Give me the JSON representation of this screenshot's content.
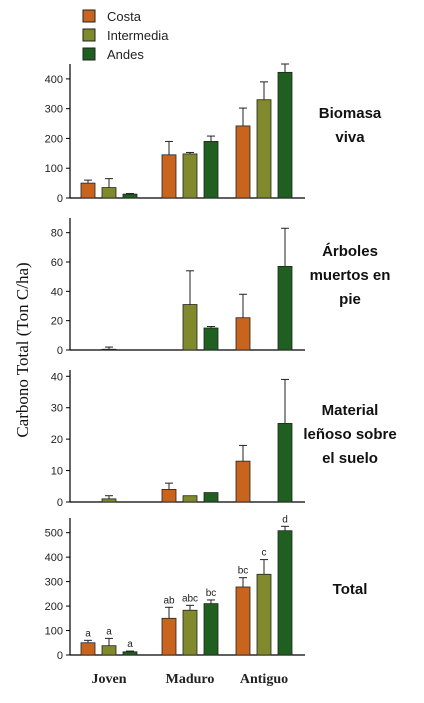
{
  "chart_data": {
    "type": "bar",
    "ylabel": "Carbono Total (Ton C/ha)",
    "categories": [
      "Joven",
      "Maduro",
      "Antiguo"
    ],
    "series_names": [
      "Costa",
      "Intermedia",
      "Andes"
    ],
    "colors": [
      "#c8641e",
      "#808a2c",
      "#1f6020"
    ],
    "legend_position": "top-left",
    "panels": [
      {
        "label": [
          "Biomasa",
          "viva"
        ],
        "ylim": [
          0,
          450
        ],
        "ticks": [
          0,
          100,
          200,
          300,
          400
        ],
        "series": [
          {
            "name": "Costa",
            "values": [
              50,
              145,
              242
            ],
            "errors": [
              10,
              45,
              60
            ]
          },
          {
            "name": "Intermedia",
            "values": [
              35,
              148,
              330
            ],
            "errors": [
              30,
              5,
              60
            ]
          },
          {
            "name": "Andes",
            "values": [
              13,
              190,
              422
            ],
            "errors": [
              2,
              18,
              28
            ]
          }
        ]
      },
      {
        "label": [
          "Árboles",
          "muertos en",
          "pie"
        ],
        "ylim": [
          0,
          90
        ],
        "ticks": [
          0,
          20,
          40,
          60,
          80
        ],
        "series": [
          {
            "name": "Costa",
            "values": [
              0,
              0,
              22
            ],
            "errors": [
              0,
              0,
              16
            ]
          },
          {
            "name": "Intermedia",
            "values": [
              0.5,
              31,
              0
            ],
            "errors": [
              1.5,
              23,
              0
            ]
          },
          {
            "name": "Andes",
            "values": [
              0,
              15,
              57
            ],
            "errors": [
              0,
              1,
              26
            ]
          }
        ]
      },
      {
        "label": [
          "Material",
          "leñoso sobre",
          "el suelo"
        ],
        "ylim": [
          0,
          42
        ],
        "ticks": [
          0,
          10,
          20,
          30,
          40
        ],
        "series": [
          {
            "name": "Costa",
            "values": [
              0,
              4,
              13
            ],
            "errors": [
              0,
              2,
              5
            ]
          },
          {
            "name": "Intermedia",
            "values": [
              1,
              2,
              0
            ],
            "errors": [
              1,
              0,
              0
            ]
          },
          {
            "name": "Andes",
            "values": [
              0,
              3,
              25
            ],
            "errors": [
              0,
              0,
              14
            ]
          }
        ]
      },
      {
        "label": [
          "Total"
        ],
        "ylim": [
          0,
          560
        ],
        "ticks": [
          0,
          100,
          200,
          300,
          400,
          500
        ],
        "series": [
          {
            "name": "Costa",
            "values": [
              50,
              150,
              278
            ],
            "errors": [
              10,
              45,
              38
            ],
            "letters": [
              "a",
              "ab",
              "bc"
            ]
          },
          {
            "name": "Intermedia",
            "values": [
              38,
              183,
              330
            ],
            "errors": [
              30,
              20,
              60
            ],
            "letters": [
              "a",
              "abc",
              "c"
            ]
          },
          {
            "name": "Andes",
            "values": [
              13,
              210,
              508
            ],
            "errors": [
              3,
              15,
              18
            ],
            "letters": [
              "a",
              "bc",
              "d"
            ]
          }
        ]
      }
    ]
  }
}
